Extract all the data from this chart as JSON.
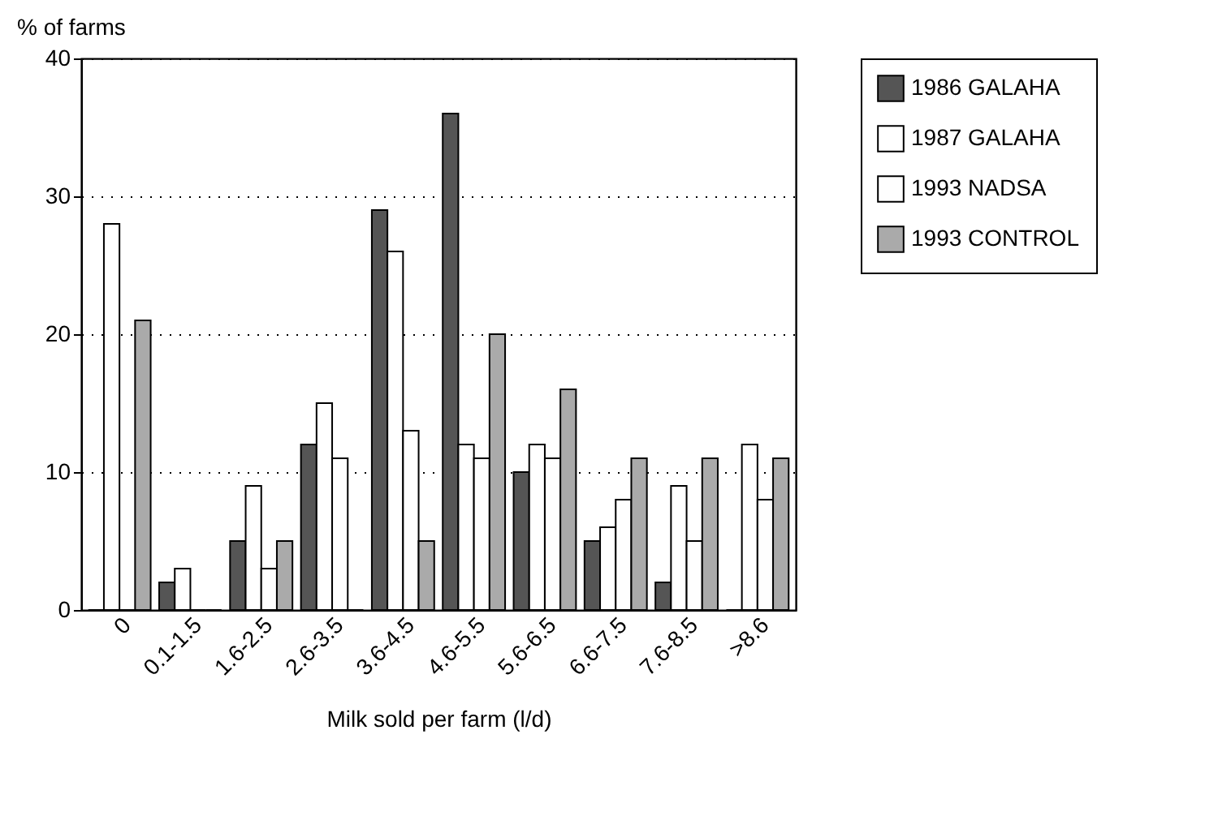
{
  "chart_data": {
    "type": "bar",
    "ylabel": "% of farms",
    "xlabel": "Milk sold per farm (l/d)",
    "categories": [
      "0",
      "0.1-1.5",
      "1.6-2.5",
      "2.6-3.5",
      "3.6-4.5",
      "4.6-5.5",
      "5.6-6.5",
      "6.6-7.5",
      "7.6-8.5",
      ">8.6"
    ],
    "series": [
      {
        "name": "1986 GALAHA",
        "color": "#555555",
        "values": [
          0,
          2,
          5,
          12,
          29,
          36,
          10,
          5,
          2,
          0
        ]
      },
      {
        "name": "1987 GALAHA",
        "color": "#ffffff",
        "values": [
          28,
          3,
          9,
          15,
          26,
          12,
          12,
          6,
          9,
          12
        ]
      },
      {
        "name": "1993 NADSA",
        "color": "#fefefe",
        "values": [
          0,
          0,
          3,
          11,
          13,
          11,
          11,
          8,
          5,
          8
        ]
      },
      {
        "name": "1993 CONTROL",
        "color": "#aaaaaa",
        "values": [
          21,
          0,
          5,
          0,
          5,
          20,
          16,
          11,
          11,
          11
        ]
      }
    ],
    "ylim": [
      0,
      40
    ],
    "yticks": [
      0,
      10,
      20,
      30,
      40
    ],
    "grid": "y",
    "legend": "right"
  }
}
